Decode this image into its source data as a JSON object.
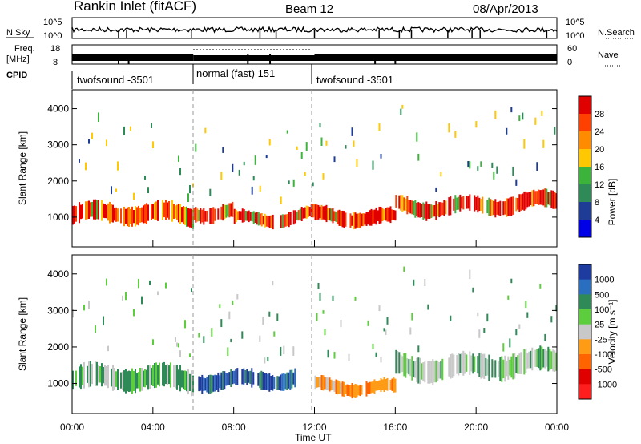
{
  "header": {
    "station": "Rankin Inlet (fitACF)",
    "beam": "Beam 12",
    "date": "08/Apr/2013"
  },
  "top_panels": {
    "nsky_label": "N.Sky",
    "nsearch_label": "N.Search",
    "freq_label_top": "Freq.",
    "freq_label_unit": "[MHz]",
    "nave_label": "Nave",
    "cpid_label": "CPID",
    "left_ticks_nsky": [
      "10^5",
      "10^0"
    ],
    "right_ticks_nsky": [
      "10^5",
      "10^0"
    ],
    "left_ticks_freq": [
      "18",
      "8"
    ],
    "right_ticks_nave": [
      "60",
      "0"
    ],
    "cpid_segments": [
      {
        "label": "twofsound -3501",
        "start_hr": 0,
        "end_hr": 6
      },
      {
        "label": "normal (fast) 151",
        "start_hr": 6,
        "end_hr": 12
      },
      {
        "label": "twofsound -3501",
        "start_hr": 12,
        "end_hr": 24
      }
    ]
  },
  "colorbars": {
    "power": {
      "label": "Power [dB]",
      "ticks": [
        "28",
        "24",
        "20",
        "16",
        "12",
        "8",
        "4"
      ],
      "colors": [
        "#e00000",
        "#ff4000",
        "#ff8c00",
        "#ffc800",
        "#3cb43c",
        "#2e8b57",
        "#1e3c96",
        "#0000e6"
      ]
    },
    "velocity": {
      "label": "Velocity [m s⁻¹]",
      "ticks": [
        "1000",
        "500",
        "100",
        "25",
        "-25",
        "-100",
        "-500",
        "-1000"
      ],
      "colors": [
        "#1e3ca0",
        "#2a6fbf",
        "#2e8b57",
        "#5ccd3c",
        "#c8c8c8",
        "#ff9b14",
        "#ff6400",
        "#e00000",
        "#ff1e1e"
      ]
    }
  },
  "chart_data": [
    {
      "type": "heatmap",
      "name_hint": "power",
      "ylabel": "Slant Range [km]",
      "ylim": [
        200,
        4500
      ],
      "yticks": [
        1000,
        2000,
        3000,
        4000
      ],
      "xlim": [
        0,
        24
      ],
      "units": "dB",
      "value_range": [
        0,
        30
      ],
      "bands": [
        {
          "t_start": 0,
          "t_end": 6,
          "range_center_km": 1050,
          "range_width_km": 500,
          "power_db": 26
        },
        {
          "t_start": 6,
          "t_end": 8,
          "range_center_km": 1200,
          "range_width_km": 400,
          "power_db": 22
        },
        {
          "t_start": 8,
          "t_end": 12,
          "range_center_km": 1000,
          "range_width_km": 350,
          "power_db": 25
        },
        {
          "t_start": 12,
          "t_end": 16,
          "range_center_km": 950,
          "range_width_km": 400,
          "power_db": 24
        },
        {
          "t_start": 16,
          "t_end": 24,
          "range_center_km": 1350,
          "range_width_km": 450,
          "power_db": 25
        }
      ]
    },
    {
      "type": "heatmap",
      "name_hint": "velocity",
      "ylabel": "Slant Range [km]",
      "ylim": [
        200,
        4500
      ],
      "yticks": [
        1000,
        2000,
        3000,
        4000
      ],
      "xlim": [
        0,
        24
      ],
      "units": "m s^-1",
      "value_range": [
        -1000,
        1000
      ],
      "bands": [
        {
          "t_start": 0,
          "t_end": 6,
          "range_center_km": 1100,
          "range_width_km": 600,
          "velocity": 150
        },
        {
          "t_start": 6,
          "t_end": 11,
          "range_center_km": 1150,
          "range_width_km": 450,
          "velocity": 900
        },
        {
          "t_start": 12,
          "t_end": 16,
          "range_center_km": 850,
          "range_width_km": 350,
          "velocity": -300
        },
        {
          "t_start": 16,
          "t_end": 24,
          "range_center_km": 1500,
          "range_width_km": 600,
          "velocity": 0
        }
      ]
    }
  ],
  "x_axis": {
    "label": "Time UT",
    "ticks": [
      "00:00",
      "04:00",
      "08:00",
      "12:00",
      "16:00",
      "20:00",
      "00:00"
    ]
  }
}
